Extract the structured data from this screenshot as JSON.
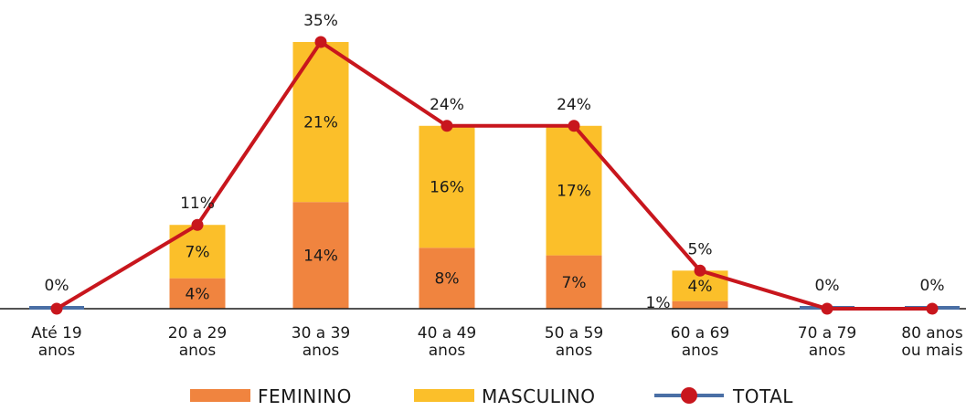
{
  "chart_data": {
    "type": "bar",
    "stacked": true,
    "categories": [
      [
        "Até 19",
        "anos"
      ],
      [
        "20 a 29",
        "anos"
      ],
      [
        "30 a 39",
        "anos"
      ],
      [
        "40 a 49",
        "anos"
      ],
      [
        "50 a 59",
        "anos"
      ],
      [
        "60 a 69",
        "anos"
      ],
      [
        "70 a 79",
        "anos"
      ],
      [
        "80 anos",
        "ou mais"
      ]
    ],
    "series": [
      {
        "name": "FEMININO",
        "kind": "bar",
        "color": "#f0843f",
        "values": [
          0,
          4,
          14,
          8,
          7,
          1,
          0,
          0
        ],
        "labels": [
          "",
          "4%",
          "14%",
          "8%",
          "7%",
          "1%",
          "",
          ""
        ]
      },
      {
        "name": "MASCULINO",
        "kind": "bar",
        "color": "#fbbf2a",
        "values": [
          0,
          7,
          21,
          16,
          17,
          4,
          0,
          0
        ],
        "labels": [
          "",
          "7%",
          "21%",
          "16%",
          "17%",
          "4%",
          "",
          ""
        ]
      },
      {
        "name": "TOTAL",
        "kind": "line",
        "color": "#c8161d",
        "marker_line_color": "#4a6fa5",
        "values": [
          0,
          11,
          35,
          24,
          24,
          5,
          0,
          0
        ],
        "labels": [
          "0%",
          "11%",
          "35%",
          "24%",
          "24%",
          "5%",
          "0%",
          "0%"
        ]
      }
    ],
    "ylim": [
      0,
      35
    ],
    "grid": false,
    "legend_position": "bottom-center"
  }
}
